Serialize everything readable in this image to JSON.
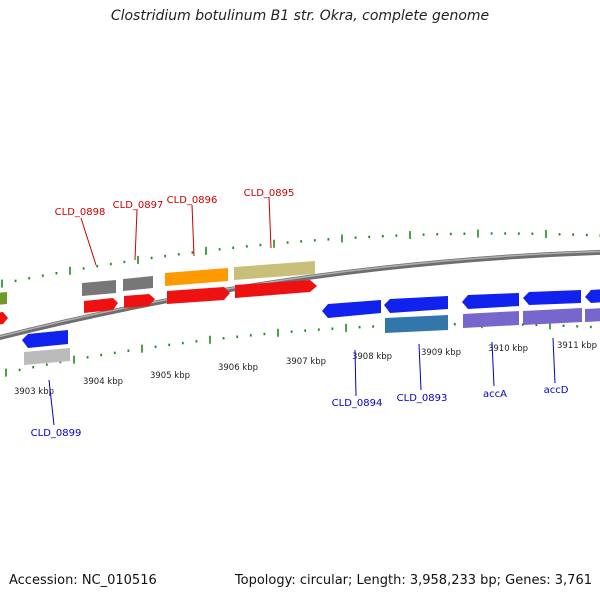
{
  "title": "Clostridium botulinum B1 str. Okra, complete genome",
  "footer": {
    "accession": "Accession: NC_010516",
    "summary": "Topology: circular; Length: 3,958,233 bp; Genes: 3,761"
  },
  "scale_labels": [
    "3903 kbp",
    "3904 kbp",
    "3905 kbp",
    "3906 kbp",
    "3907 kbp",
    "3908 kbp",
    "3909 kbp",
    "3910 kbp",
    "3911 kbp"
  ],
  "forward_gene_labels": [
    "CLD_0898",
    "CLD_0897",
    "CLD_0896",
    "CLD_0895"
  ],
  "reverse_gene_labels": [
    "CLD_0899",
    "CLD_0894",
    "CLD_0893",
    "accA",
    "accD"
  ],
  "colors": {
    "forward_label": "#cc0000",
    "reverse_label": "#0000cc",
    "backbone": "#8a8a8a",
    "tick": "#1a8a1a",
    "red_cds": "#ee1111",
    "blue_cds": "#1122ee",
    "gray_feature": "#777777",
    "orange_feature": "#ff9900",
    "khaki_feature": "#c8c07a",
    "purple_feature": "#7766cc",
    "teal_feature": "#3377aa",
    "light_gray_feature": "#bbbbbb",
    "olive_feature": "#6f9a2a"
  }
}
